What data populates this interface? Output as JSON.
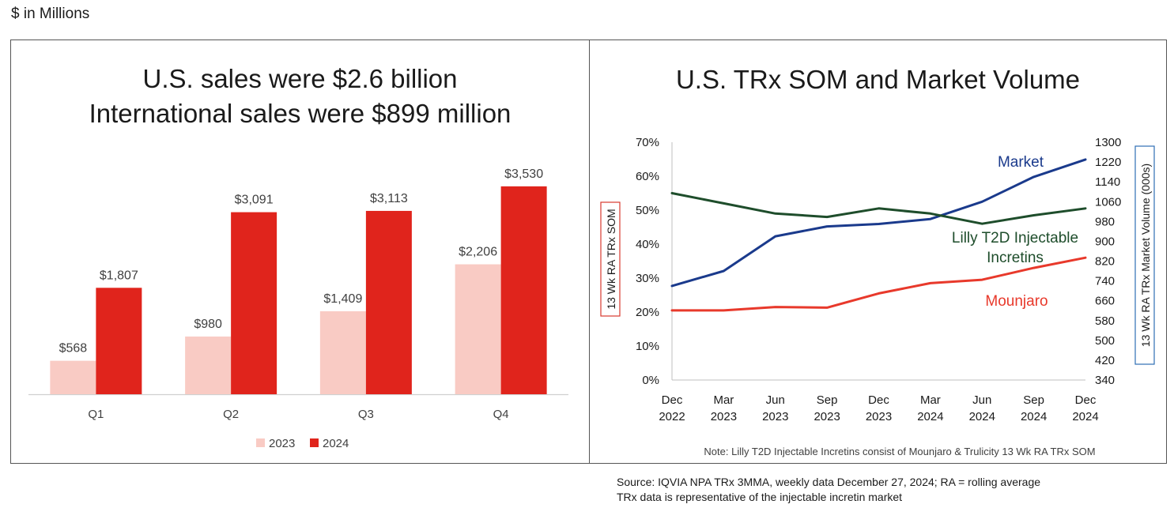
{
  "header": {
    "units": "$ in Millions"
  },
  "left_panel": {
    "title_line1": "U.S. sales were $2.6 billion",
    "title_line2": "International sales were $899 million"
  },
  "right_panel": {
    "title": "U.S. TRx SOM and Market Volume",
    "note": "Note: Lilly T2D Injectable Incretins consist of Mounjaro & Trulicity 13 Wk RA TRx SOM"
  },
  "footer": {
    "source_line1": "Source: IQVIA NPA TRx 3MMA, weekly data December 27, 2024; RA = rolling average",
    "source_line2": "TRx data is representative of the injectable incretin market"
  },
  "colors": {
    "c2023": "#f9cbc4",
    "c2024": "#e0241c",
    "market": "#1a3a8c",
    "lilly": "#1e4d2b",
    "mounjaro": "#e8392b",
    "y2box": "#2e6eb5"
  },
  "chart_data": [
    {
      "type": "bar",
      "categories": [
        "Q1",
        "Q2",
        "Q3",
        "Q4"
      ],
      "series": [
        {
          "name": "2023",
          "values": [
            568,
            980,
            1409,
            2206
          ],
          "labels": [
            "$568",
            "$980",
            "$1,409",
            "$2,206"
          ]
        },
        {
          "name": "2024",
          "values": [
            1807,
            3091,
            3113,
            3530
          ],
          "labels": [
            "$1,807",
            "$3,091",
            "$3,113",
            "$3,530"
          ]
        }
      ],
      "ylim": [
        0,
        4400
      ],
      "legend": "bottom-center"
    },
    {
      "type": "line",
      "x_ticks": [
        {
          "month": "Dec",
          "year": "2022"
        },
        {
          "month": "Mar",
          "year": "2023"
        },
        {
          "month": "Jun",
          "year": "2023"
        },
        {
          "month": "Sep",
          "year": "2023"
        },
        {
          "month": "Dec",
          "year": "2023"
        },
        {
          "month": "Mar",
          "year": "2024"
        },
        {
          "month": "Jun",
          "year": "2024"
        },
        {
          "month": "Sep",
          "year": "2024"
        },
        {
          "month": "Dec",
          "year": "2024"
        }
      ],
      "ylabel": "13 Wk RA TRx SOM",
      "y2label": "13 Wk RA TRx Market Volume (000s)",
      "y_ticks": [
        "0%",
        "10%",
        "20%",
        "30%",
        "40%",
        "50%",
        "60%",
        "70%"
      ],
      "y2_ticks": [
        "340",
        "420",
        "500",
        "580",
        "660",
        "740",
        "820",
        "900",
        "980",
        "1060",
        "1140",
        "1220",
        "1300"
      ],
      "ylim": [
        0,
        70
      ],
      "y2lim": [
        340,
        1300
      ],
      "series": [
        {
          "name": "Market",
          "axis": "right",
          "label_lines": [
            "Market"
          ],
          "x": [
            0,
            3,
            6,
            9,
            12,
            15,
            18,
            21,
            24
          ],
          "values": [
            720,
            780,
            920,
            960,
            970,
            990,
            1060,
            1160,
            1230
          ]
        },
        {
          "name": "Lilly T2D Injectable Incretins",
          "axis": "left",
          "label_lines": [
            "Lilly T2D Injectable",
            "Incretins"
          ],
          "x": [
            0,
            3,
            6,
            9,
            12,
            15,
            18,
            21,
            24
          ],
          "values": [
            55,
            52,
            49,
            48,
            50.5,
            49,
            46,
            48.5,
            50.5
          ]
        },
        {
          "name": "Mounjaro",
          "axis": "left",
          "label_lines": [
            "Mounjaro"
          ],
          "x": [
            0,
            3,
            6,
            9,
            12,
            15,
            18,
            21,
            24
          ],
          "values": [
            20.5,
            20.5,
            21.5,
            21.3,
            25.5,
            28.5,
            29.5,
            33,
            36
          ]
        }
      ]
    }
  ]
}
